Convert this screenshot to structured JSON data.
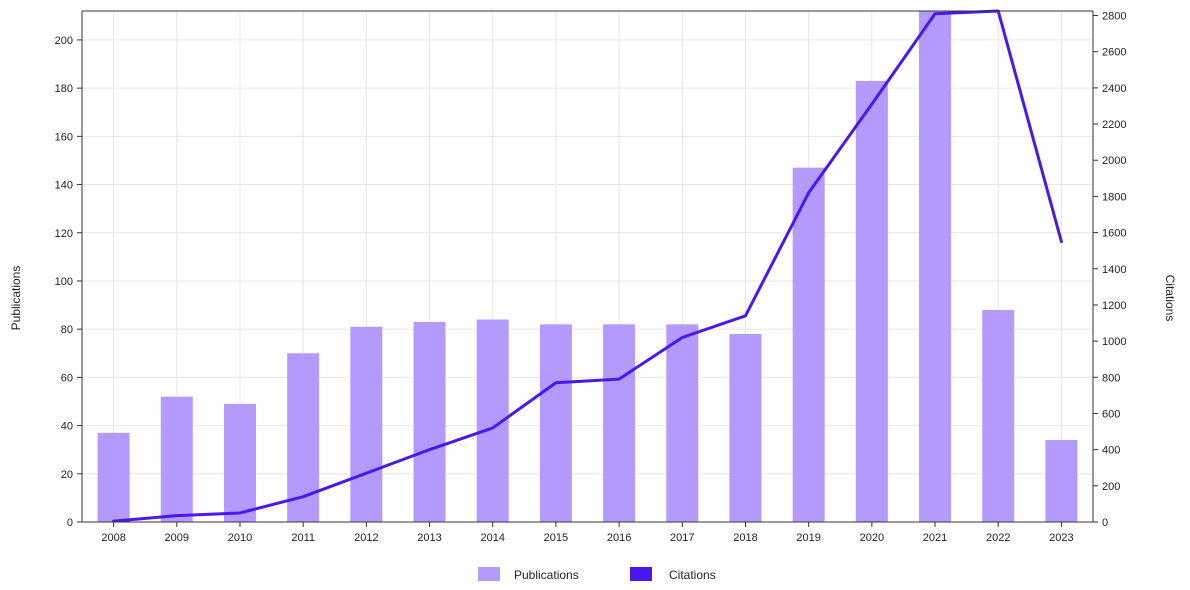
{
  "chart_data": {
    "type": "bar+line",
    "categories": [
      "2008",
      "2009",
      "2010",
      "2011",
      "2012",
      "2013",
      "2014",
      "2015",
      "2016",
      "2017",
      "2018",
      "2019",
      "2020",
      "2021",
      "2022",
      "2023"
    ],
    "series": [
      {
        "name": "Publications",
        "type": "bar",
        "axis": "left",
        "color": "#b39afc",
        "values": [
          37,
          52,
          49,
          70,
          81,
          83,
          84,
          82,
          82,
          82,
          78,
          147,
          183,
          212,
          88,
          34
        ]
      },
      {
        "name": "Citations",
        "type": "line",
        "axis": "right",
        "color": "#4a17ef",
        "values": [
          5,
          35,
          50,
          140,
          270,
          400,
          520,
          770,
          790,
          1020,
          1140,
          1820,
          2310,
          2810,
          2830,
          1550
        ]
      }
    ],
    "ylabel": "Publications",
    "y2label": "Citations",
    "ylim": [
      0,
      212
    ],
    "y2lim": [
      0,
      2825
    ],
    "yticks": [
      0,
      20,
      40,
      60,
      80,
      100,
      120,
      140,
      160,
      180,
      200
    ],
    "y2ticks": [
      0,
      200,
      400,
      600,
      800,
      1000,
      1200,
      1400,
      1600,
      1800,
      2000,
      2200,
      2400,
      2600,
      2800
    ],
    "grid": true,
    "legend": {
      "position": "bottom-center",
      "entries": [
        "Publications",
        "Citations"
      ]
    }
  }
}
